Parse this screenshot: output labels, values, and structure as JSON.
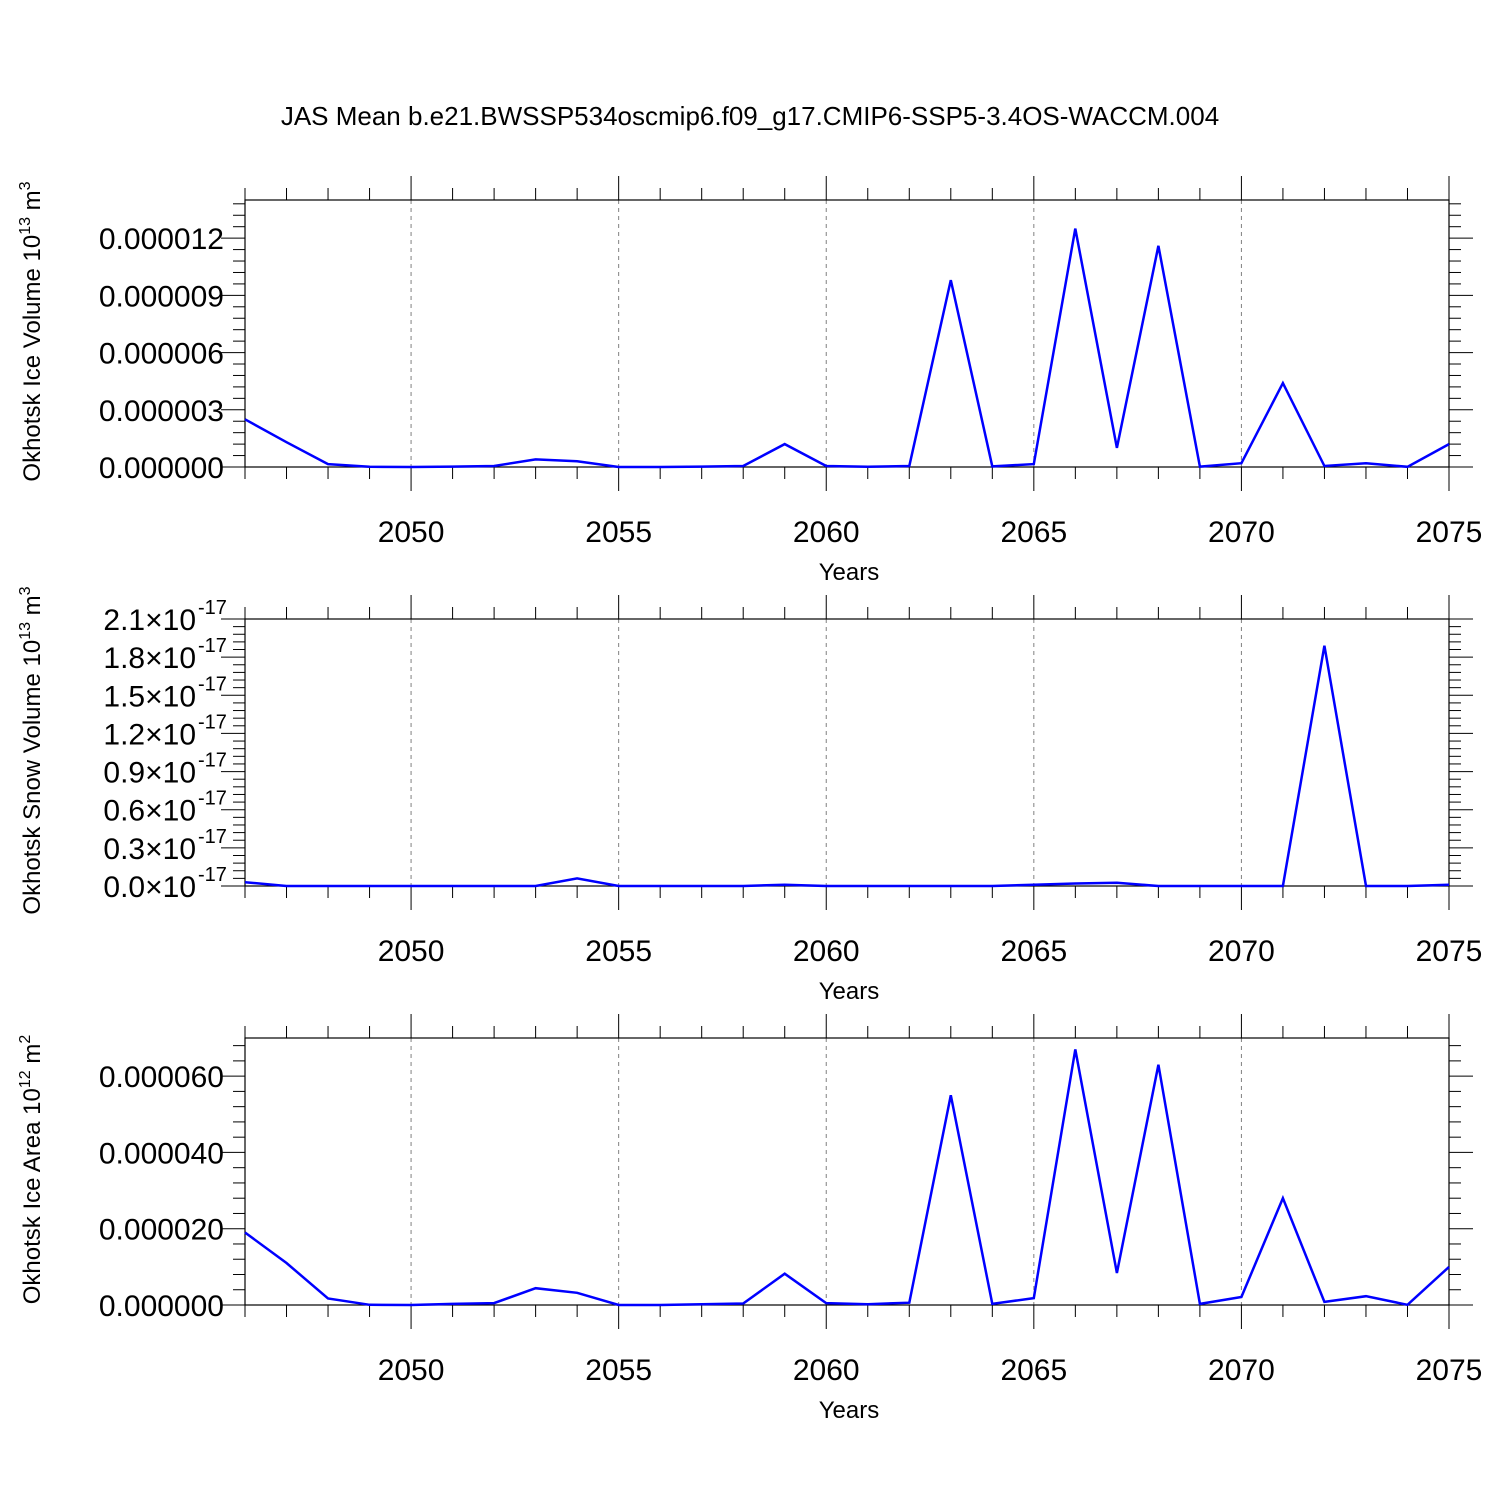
{
  "chart_data": [
    {
      "type": "line",
      "title": "JAS Mean b.e21.BWSSP534oscmip6.f09_g17.CMIP6-SSP5-3.4OS-WACCM.004",
      "xlabel": "Years",
      "ylabel_text": "Okhotsk Ice Volume 10",
      "ylabel_exp": "13",
      "ylabel_unit": " m",
      "ylabel_unit_exp": "3",
      "xlim": [
        2046,
        2075
      ],
      "ylim": [
        0,
        1.4e-05
      ],
      "xticks": [
        2050,
        2055,
        2060,
        2065,
        2070,
        2075
      ],
      "xtick_labels": [
        "2050",
        "2055",
        "2060",
        "2065",
        "2070",
        "2075"
      ],
      "yticks": [
        0,
        3e-06,
        6e-06,
        9e-06,
        1.2e-05
      ],
      "ytick_labels": [
        "0.000000",
        "0.000003",
        "0.000006",
        "0.000009",
        "0.000012"
      ],
      "ytick_exp_labels": [],
      "grid": "vertical dashed at major x ticks",
      "color": "#0000ff",
      "x": [
        2046,
        2047,
        2048,
        2049,
        2050,
        2051,
        2052,
        2053,
        2054,
        2055,
        2056,
        2057,
        2058,
        2059,
        2060,
        2061,
        2062,
        2063,
        2064,
        2065,
        2066,
        2067,
        2068,
        2069,
        2070,
        2071,
        2072,
        2073,
        2074,
        2075
      ],
      "y": [
        2.5e-06,
        1.3e-06,
        1.5e-07,
        1e-08,
        0.0,
        2e-08,
        5e-08,
        4e-07,
        3e-07,
        0.0,
        0.0,
        2e-08,
        5e-08,
        1.2e-06,
        5e-08,
        1e-08,
        5e-08,
        9.8e-06,
        3e-08,
        1.5e-07,
        1.25e-05,
        1e-06,
        1.16e-05,
        2e-08,
        2e-07,
        4.4e-06,
        5e-08,
        2e-07,
        1e-08,
        1.2e-06
      ]
    },
    {
      "type": "line",
      "title": "",
      "xlabel": "Years",
      "ylabel_text": "Okhotsk Snow Volume 10",
      "ylabel_exp": "13",
      "ylabel_unit": " m",
      "ylabel_unit_exp": "3",
      "xlim": [
        2046,
        2075
      ],
      "ylim": [
        0,
        2.1e-17
      ],
      "xticks": [
        2050,
        2055,
        2060,
        2065,
        2070,
        2075
      ],
      "xtick_labels": [
        "2050",
        "2055",
        "2060",
        "2065",
        "2070",
        "2075"
      ],
      "yticks": [
        0,
        3e-18,
        6e-18,
        9e-18,
        1.2e-17,
        1.5e-17,
        1.8e-17,
        2.1e-17
      ],
      "ytick_labels": [
        "0.0",
        "0.3",
        "0.6",
        "0.9",
        "1.2",
        "1.5",
        "1.8",
        "2.1"
      ],
      "ytick_times": "×10",
      "ytick_exp": "-17",
      "grid": "vertical dashed at major x ticks",
      "color": "#0000ff",
      "x": [
        2046,
        2047,
        2048,
        2049,
        2050,
        2051,
        2052,
        2053,
        2054,
        2055,
        2056,
        2057,
        2058,
        2059,
        2060,
        2061,
        2062,
        2063,
        2064,
        2065,
        2066,
        2067,
        2068,
        2069,
        2070,
        2071,
        2072,
        2073,
        2074,
        2075
      ],
      "y": [
        3e-19,
        0,
        0,
        0,
        0,
        0,
        0,
        0,
        6e-19,
        0,
        0,
        0,
        0,
        1e-19,
        0,
        0,
        0,
        0,
        0,
        1e-19,
        2e-19,
        2.5e-19,
        0,
        0,
        0,
        0,
        1.89e-17,
        0,
        0,
        1e-19
      ]
    },
    {
      "type": "line",
      "title": "",
      "xlabel": "Years",
      "ylabel_text": "Okhotsk Ice Area 10",
      "ylabel_exp": "12",
      "ylabel_unit": " m",
      "ylabel_unit_exp": "2",
      "xlim": [
        2046,
        2075
      ],
      "ylim": [
        0,
        7e-05
      ],
      "xticks": [
        2050,
        2055,
        2060,
        2065,
        2070,
        2075
      ],
      "xtick_labels": [
        "2050",
        "2055",
        "2060",
        "2065",
        "2070",
        "2075"
      ],
      "yticks": [
        0,
        2e-05,
        4e-05,
        6e-05
      ],
      "ytick_labels": [
        "0.000000",
        "0.000020",
        "0.000040",
        "0.000060"
      ],
      "grid": "vertical dashed at major x ticks",
      "color": "#0000ff",
      "x": [
        2046,
        2047,
        2048,
        2049,
        2050,
        2051,
        2052,
        2053,
        2054,
        2055,
        2056,
        2057,
        2058,
        2059,
        2060,
        2061,
        2062,
        2063,
        2064,
        2065,
        2066,
        2067,
        2068,
        2069,
        2070,
        2071,
        2072,
        2073,
        2074,
        2075
      ],
      "y": [
        1.9e-05,
        1.1e-05,
        1.7e-06,
        5e-08,
        0.0,
        3e-07,
        5e-07,
        4.4e-06,
        3.2e-06,
        0.0,
        0.0,
        2e-07,
        4e-07,
        8.2e-06,
        5e-07,
        2e-07,
        6e-07,
        5.5e-05,
        3e-07,
        1.8e-06,
        6.7e-05,
        8.4e-06,
        6.3e-05,
        3e-07,
        2.1e-06,
        2.8e-05,
        8e-07,
        2.3e-06,
        5e-08,
        1e-05
      ]
    }
  ]
}
